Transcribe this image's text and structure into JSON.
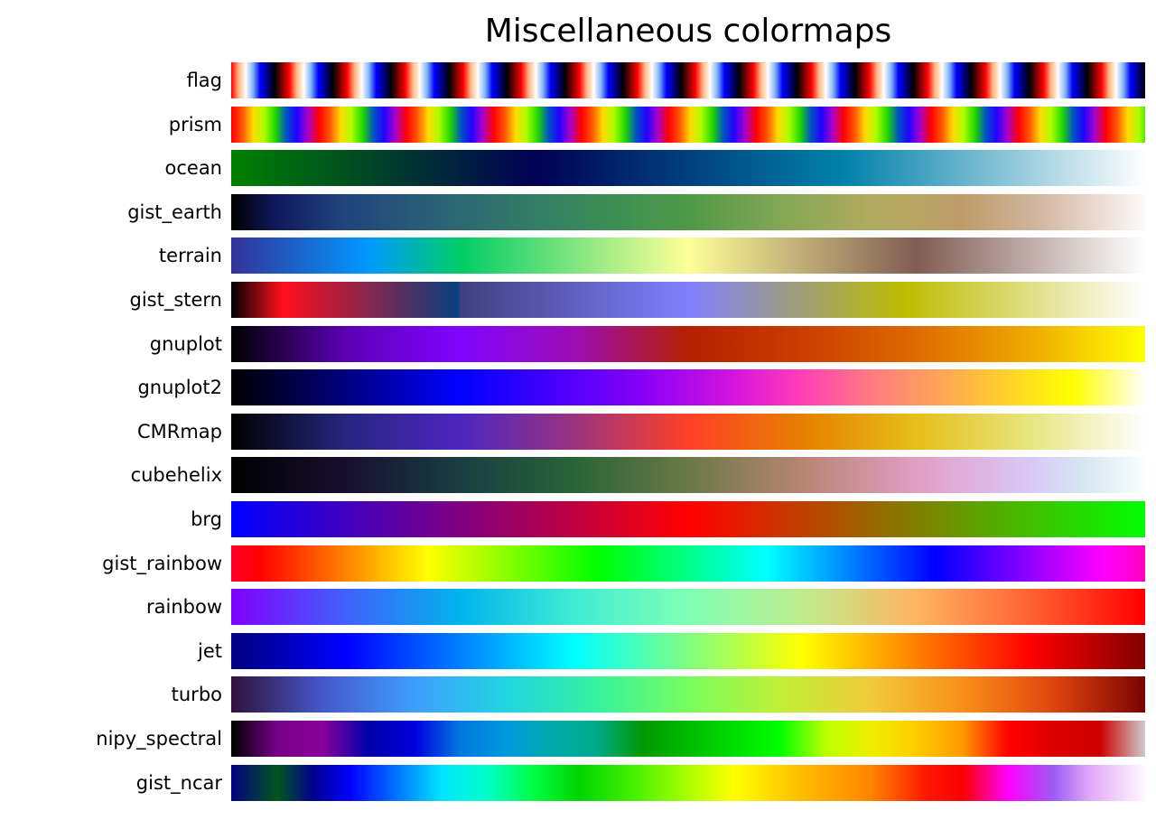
{
  "figure": {
    "title": "Miscellaneous colormaps"
  },
  "chart_data": {
    "type": "heatmap",
    "title": "Miscellaneous colormaps",
    "description": "Horizontal colormap swatches, one bar per colormap; each bar sweeps the colormap from 0.0 (left) to 1.0 (right). Stops are [position_percent, hex_color].",
    "legend_position": "left-row-labels",
    "rows": [
      {
        "name": "flag",
        "repeat_cycles": 15.75,
        "cycle_stops": [
          [
            0,
            "#ff0000"
          ],
          [
            12.5,
            "#ffb57f"
          ],
          [
            25,
            "#ffffff"
          ],
          [
            37.5,
            "#7fb5ff"
          ],
          [
            50,
            "#0000ff"
          ],
          [
            62.5,
            "#000080"
          ],
          [
            75,
            "#000000"
          ],
          [
            87.5,
            "#800000"
          ],
          [
            100,
            "#ff0000"
          ]
        ]
      },
      {
        "name": "prism",
        "repeat_cycles": 10.45,
        "cycle_stops": [
          [
            0,
            "#ff0000"
          ],
          [
            12.5,
            "#ff5400"
          ],
          [
            25,
            "#ffdb00"
          ],
          [
            37.5,
            "#abff00"
          ],
          [
            50,
            "#24db00"
          ],
          [
            62.5,
            "#0054c7"
          ],
          [
            75,
            "#2400ff"
          ],
          [
            87.5,
            "#ab00c7"
          ],
          [
            100,
            "#ff0000"
          ]
        ]
      },
      {
        "name": "ocean",
        "stops": [
          [
            0,
            "#008000"
          ],
          [
            33.3,
            "#000055"
          ],
          [
            66.7,
            "#0080aa"
          ],
          [
            100,
            "#ffffff"
          ]
        ]
      },
      {
        "name": "gist_earth",
        "stops": [
          [
            0,
            "#000000"
          ],
          [
            5,
            "#10195f"
          ],
          [
            12,
            "#20427c"
          ],
          [
            22,
            "#2a6076"
          ],
          [
            32,
            "#327a68"
          ],
          [
            42,
            "#3d8f53"
          ],
          [
            50,
            "#4f9947"
          ],
          [
            60,
            "#83a655"
          ],
          [
            70,
            "#b2ab5f"
          ],
          [
            80,
            "#bd9c69"
          ],
          [
            88,
            "#d0b59e"
          ],
          [
            95,
            "#eddbd2"
          ],
          [
            100,
            "#fdfbfa"
          ]
        ]
      },
      {
        "name": "terrain",
        "stops": [
          [
            0,
            "#333399"
          ],
          [
            15,
            "#0099ff"
          ],
          [
            25,
            "#00cc66"
          ],
          [
            50,
            "#ffff99"
          ],
          [
            75,
            "#805c54"
          ],
          [
            100,
            "#ffffff"
          ]
        ]
      },
      {
        "name": "gist_stern",
        "stops": [
          [
            0,
            "#000000"
          ],
          [
            5.5,
            "#ff0e1c"
          ],
          [
            24.7,
            "#093f7f"
          ],
          [
            25.2,
            "#404080"
          ],
          [
            50,
            "#8080ff"
          ],
          [
            60,
            "#99998f"
          ],
          [
            73.5,
            "#bcbc00"
          ],
          [
            100,
            "#ffffff"
          ]
        ]
      },
      {
        "name": "gnuplot",
        "stops": [
          [
            0,
            "#000000"
          ],
          [
            12.5,
            "#5a00b4"
          ],
          [
            25,
            "#8004ff"
          ],
          [
            37.5,
            "#9c0db4"
          ],
          [
            50,
            "#b42000"
          ],
          [
            62.5,
            "#ca3e00"
          ],
          [
            75,
            "#dd6b00"
          ],
          [
            87.5,
            "#eeab00"
          ],
          [
            100,
            "#ffff00"
          ]
        ]
      },
      {
        "name": "gnuplot2",
        "stops": [
          [
            0,
            "#000000"
          ],
          [
            25,
            "#0000ff"
          ],
          [
            45,
            "#8800f7"
          ],
          [
            55,
            "#d414dd"
          ],
          [
            62,
            "#ff3cb8"
          ],
          [
            70,
            "#ff7b82"
          ],
          [
            80,
            "#ffb347"
          ],
          [
            92,
            "#ffff00"
          ],
          [
            100,
            "#ffffff"
          ]
        ]
      },
      {
        "name": "CMRmap",
        "stops": [
          [
            0,
            "#000000"
          ],
          [
            12.5,
            "#262680"
          ],
          [
            25,
            "#4d26bf"
          ],
          [
            37.5,
            "#993380"
          ],
          [
            50,
            "#ff4026"
          ],
          [
            62.5,
            "#e68000"
          ],
          [
            75,
            "#e6bf1a"
          ],
          [
            87.5,
            "#e6e680"
          ],
          [
            100,
            "#ffffff"
          ]
        ]
      },
      {
        "name": "cubehelix",
        "stops": [
          [
            0,
            "#000000"
          ],
          [
            12.5,
            "#170f2e"
          ],
          [
            25,
            "#1a3d42"
          ],
          [
            37.5,
            "#296338"
          ],
          [
            50,
            "#6b7847"
          ],
          [
            62.5,
            "#b88573"
          ],
          [
            75,
            "#e19ec4"
          ],
          [
            87.5,
            "#d9c9f7"
          ],
          [
            93,
            "#d4e6f0"
          ],
          [
            100,
            "#f9fffd"
          ]
        ]
      },
      {
        "name": "brg",
        "stops": [
          [
            0,
            "#0000ff"
          ],
          [
            50,
            "#ff0000"
          ],
          [
            100,
            "#00ff00"
          ]
        ]
      },
      {
        "name": "gist_rainbow",
        "stops": [
          [
            0,
            "#ff0029"
          ],
          [
            3,
            "#ff0000"
          ],
          [
            21.5,
            "#ffff00"
          ],
          [
            40,
            "#00ff00"
          ],
          [
            58.6,
            "#00ffff"
          ],
          [
            77,
            "#0000ff"
          ],
          [
            95.4,
            "#ff00ff"
          ],
          [
            100,
            "#ff00bf"
          ]
        ]
      },
      {
        "name": "rainbow",
        "stops": [
          [
            0,
            "#8000ff"
          ],
          [
            12.5,
            "#4061fa"
          ],
          [
            25,
            "#00b4ec"
          ],
          [
            37.5,
            "#40ecd4"
          ],
          [
            50,
            "#80ffb5"
          ],
          [
            62.5,
            "#bfec8e"
          ],
          [
            75,
            "#ffb461"
          ],
          [
            87.5,
            "#ff6132"
          ],
          [
            100,
            "#ff0000"
          ]
        ]
      },
      {
        "name": "jet",
        "stops": [
          [
            0,
            "#000080"
          ],
          [
            12.5,
            "#0000ff"
          ],
          [
            37.5,
            "#00ffff"
          ],
          [
            62.5,
            "#ffff00"
          ],
          [
            87.5,
            "#ff0000"
          ],
          [
            100,
            "#800000"
          ]
        ]
      },
      {
        "name": "turbo",
        "stops": [
          [
            0,
            "#30123b"
          ],
          [
            10,
            "#4458cb"
          ],
          [
            20,
            "#3e9efc"
          ],
          [
            30,
            "#20d5e1"
          ],
          [
            40,
            "#36f29e"
          ],
          [
            50,
            "#78fe5e"
          ],
          [
            60,
            "#c0f036"
          ],
          [
            70,
            "#f1ca3a"
          ],
          [
            80,
            "#fa8f19"
          ],
          [
            90,
            "#e0440e"
          ],
          [
            100,
            "#7a0403"
          ]
        ]
      },
      {
        "name": "nipy_spectral",
        "stops": [
          [
            0,
            "#000000"
          ],
          [
            5,
            "#770088"
          ],
          [
            10,
            "#880099"
          ],
          [
            15,
            "#0000aa"
          ],
          [
            20,
            "#0000dd"
          ],
          [
            25,
            "#0077dd"
          ],
          [
            30,
            "#0099dd"
          ],
          [
            35,
            "#00aaaa"
          ],
          [
            40,
            "#00aa88"
          ],
          [
            45,
            "#009900"
          ],
          [
            50,
            "#00bb00"
          ],
          [
            55,
            "#00dd00"
          ],
          [
            60,
            "#00ff00"
          ],
          [
            65,
            "#bbff00"
          ],
          [
            70,
            "#eeee00"
          ],
          [
            75,
            "#ffcc00"
          ],
          [
            80,
            "#ff9900"
          ],
          [
            85,
            "#ff0000"
          ],
          [
            90,
            "#dd0000"
          ],
          [
            95,
            "#cc0000"
          ],
          [
            100,
            "#cccccc"
          ]
        ]
      },
      {
        "name": "gist_ncar",
        "stops": [
          [
            0,
            "#000080"
          ],
          [
            5,
            "#00561c"
          ],
          [
            9,
            "#000090"
          ],
          [
            13,
            "#0000ff"
          ],
          [
            18,
            "#0072ff"
          ],
          [
            23,
            "#00e4ff"
          ],
          [
            28,
            "#00ffc8"
          ],
          [
            33,
            "#00ff44"
          ],
          [
            38,
            "#00d500"
          ],
          [
            44,
            "#44f000"
          ],
          [
            50,
            "#aaff00"
          ],
          [
            55,
            "#ffff00"
          ],
          [
            62,
            "#ffbf00"
          ],
          [
            70,
            "#ff8400"
          ],
          [
            76,
            "#ff1800"
          ],
          [
            80,
            "#fb0000"
          ],
          [
            85,
            "#ff00ff"
          ],
          [
            90,
            "#9a5df2"
          ],
          [
            94,
            "#e2aaf8"
          ],
          [
            100,
            "#fef8fe"
          ]
        ]
      }
    ]
  }
}
